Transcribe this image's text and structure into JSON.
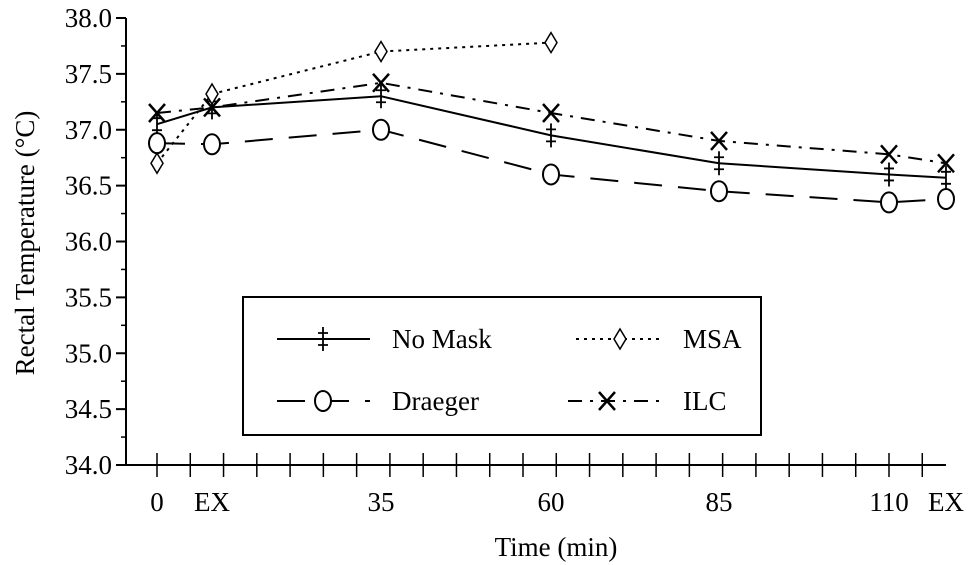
{
  "chart_data": {
    "type": "line",
    "title": "",
    "xlabel": "Time (min)",
    "ylabel": "Rectal Temperature (°C)",
    "ylim": [
      34.0,
      38.0
    ],
    "yticks": [
      "34.0",
      "34.5",
      "35.0",
      "35.5",
      "36.0",
      "36.5",
      "37.0",
      "37.5",
      "38.0"
    ],
    "yticks_values": [
      34.0,
      34.5,
      35.0,
      35.5,
      36.0,
      36.5,
      37.0,
      37.5,
      38.0
    ],
    "x_positions": [
      0,
      10,
      35,
      60,
      85,
      110,
      120
    ],
    "xtick_labels": [
      {
        "x": 0,
        "label": "0"
      },
      {
        "x": 10,
        "label": "EX"
      },
      {
        "x": 35,
        "label": "35"
      },
      {
        "x": 60,
        "label": "60"
      },
      {
        "x": 85,
        "label": "85"
      },
      {
        "x": 110,
        "label": "110"
      },
      {
        "x": 120,
        "label": "EX"
      }
    ],
    "grid": false,
    "legend_position": "bottom-center",
    "series": [
      {
        "name": "No Mask",
        "marker": "‡",
        "line": "solid",
        "color": "#000000",
        "x": [
          0,
          10,
          35,
          60,
          85,
          110,
          120
        ],
        "y": [
          37.05,
          37.2,
          37.3,
          36.95,
          36.7,
          36.6,
          36.57
        ]
      },
      {
        "name": "MSA",
        "marker": "◊",
        "line": "dotted",
        "color": "#000000",
        "x": [
          0,
          10,
          35,
          60
        ],
        "y": [
          36.7,
          37.32,
          37.7,
          37.78
        ]
      },
      {
        "name": "Draeger",
        "marker": "O",
        "line": "longdash",
        "color": "#000000",
        "x": [
          0,
          10,
          35,
          60,
          85,
          110,
          120
        ],
        "y": [
          36.88,
          36.87,
          37.0,
          36.6,
          36.45,
          36.35,
          36.38
        ]
      },
      {
        "name": "ILC",
        "marker": "X",
        "line": "dashdot",
        "color": "#000000",
        "x": [
          0,
          10,
          35,
          60,
          85,
          110,
          120
        ],
        "y": [
          37.15,
          37.2,
          37.42,
          37.15,
          36.9,
          36.78,
          36.7
        ]
      }
    ]
  }
}
